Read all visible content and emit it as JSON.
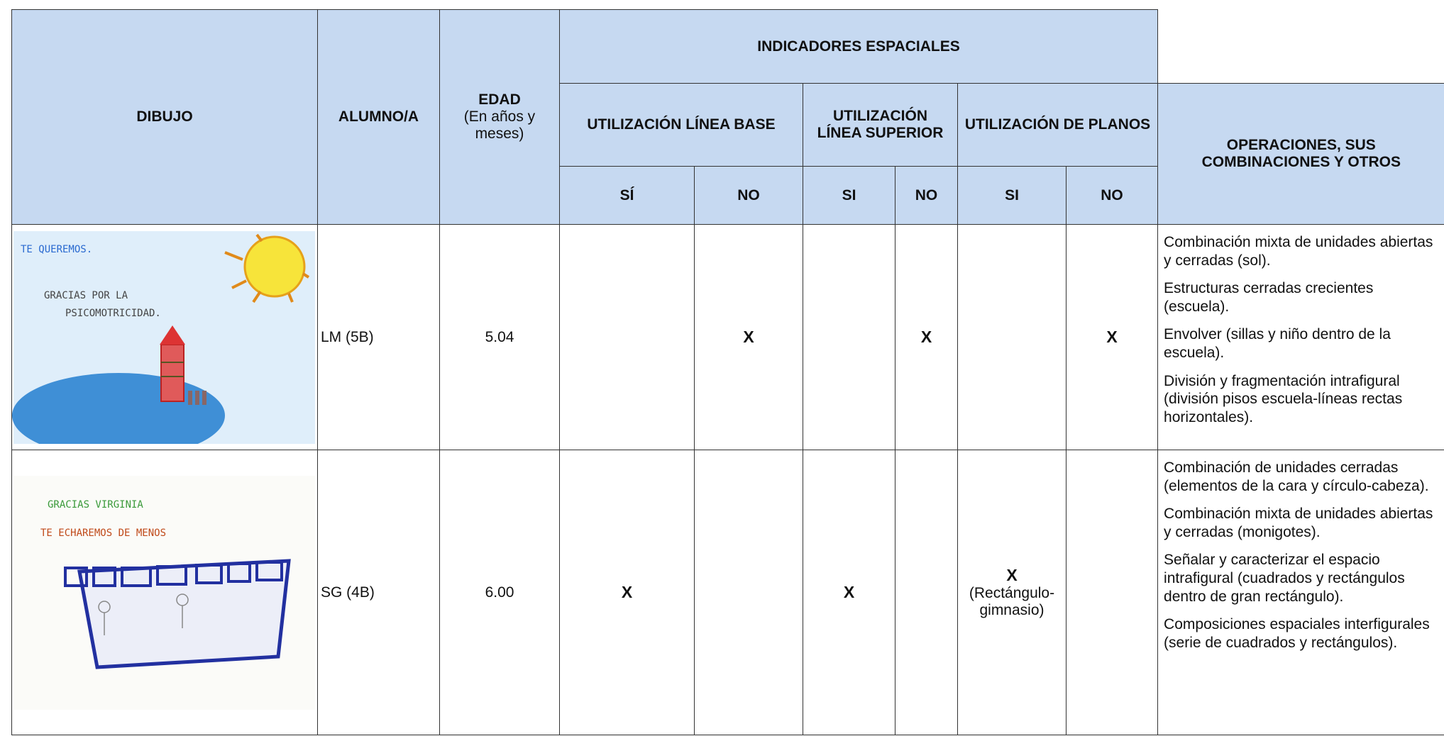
{
  "table": {
    "header": {
      "dibujo": "DIBUJO",
      "alumno": "ALUMNO/A",
      "edad": "EDAD",
      "edad_sub": "(En años y meses)",
      "indicadores": "INDICADORES ESPACIALES",
      "groups": [
        {
          "title": "UTILIZACIÓN LÍNEA BASE",
          "si": "SÍ",
          "no": "NO"
        },
        {
          "title": "UTILIZACIÓN LÍNEA SUPERIOR",
          "si": "SI",
          "no": "NO"
        },
        {
          "title": "UTILIZACIÓN DE PLANOS",
          "si": "SI",
          "no": "NO"
        }
      ],
      "operaciones": "OPERACIONES, SUS COMBINACIONES Y OTROS"
    },
    "rows": [
      {
        "drawing_texts": [
          "TE QUEREMOS.",
          "GRACIAS POR LA",
          "PSICOMOTRICIDAD."
        ],
        "alumno": "LM (5B)",
        "edad": "5.04",
        "marks": [
          {
            "col": 1,
            "text": "X"
          },
          {
            "col": 3,
            "text": "X"
          },
          {
            "col": 5,
            "text": "X"
          }
        ],
        "operaciones": [
          "Combinación mixta de unidades abiertas y cerradas (sol).",
          "Estructuras cerradas crecientes (escuela).",
          "Envolver (sillas y niño dentro de la escuela).",
          "División y fragmentación intrafigural (división pisos escuela-líneas rectas horizontales)."
        ]
      },
      {
        "drawing_texts": [
          "GRACIAS VIRGINIA",
          "TE ECHAREMOS DE MENOS"
        ],
        "alumno": "SG (4B)",
        "edad": "6.00",
        "marks": [
          {
            "col": 0,
            "text": "X"
          },
          {
            "col": 2,
            "text": "X"
          },
          {
            "col": 4,
            "text": "X",
            "note": "(Rectángulo-gimnasio)"
          }
        ],
        "operaciones": [
          "Combinación de unidades cerradas (elementos de la cara y círculo-cabeza).",
          "Combinación mixta de unidades abiertas y cerradas (monigotes).",
          "Señalar y caracterizar el espacio intrafigural (cuadrados y rectángulos dentro de gran rectángulo).",
          "Composiciones espaciales interfigurales (serie de cuadrados y rectángulos)."
        ]
      }
    ]
  }
}
